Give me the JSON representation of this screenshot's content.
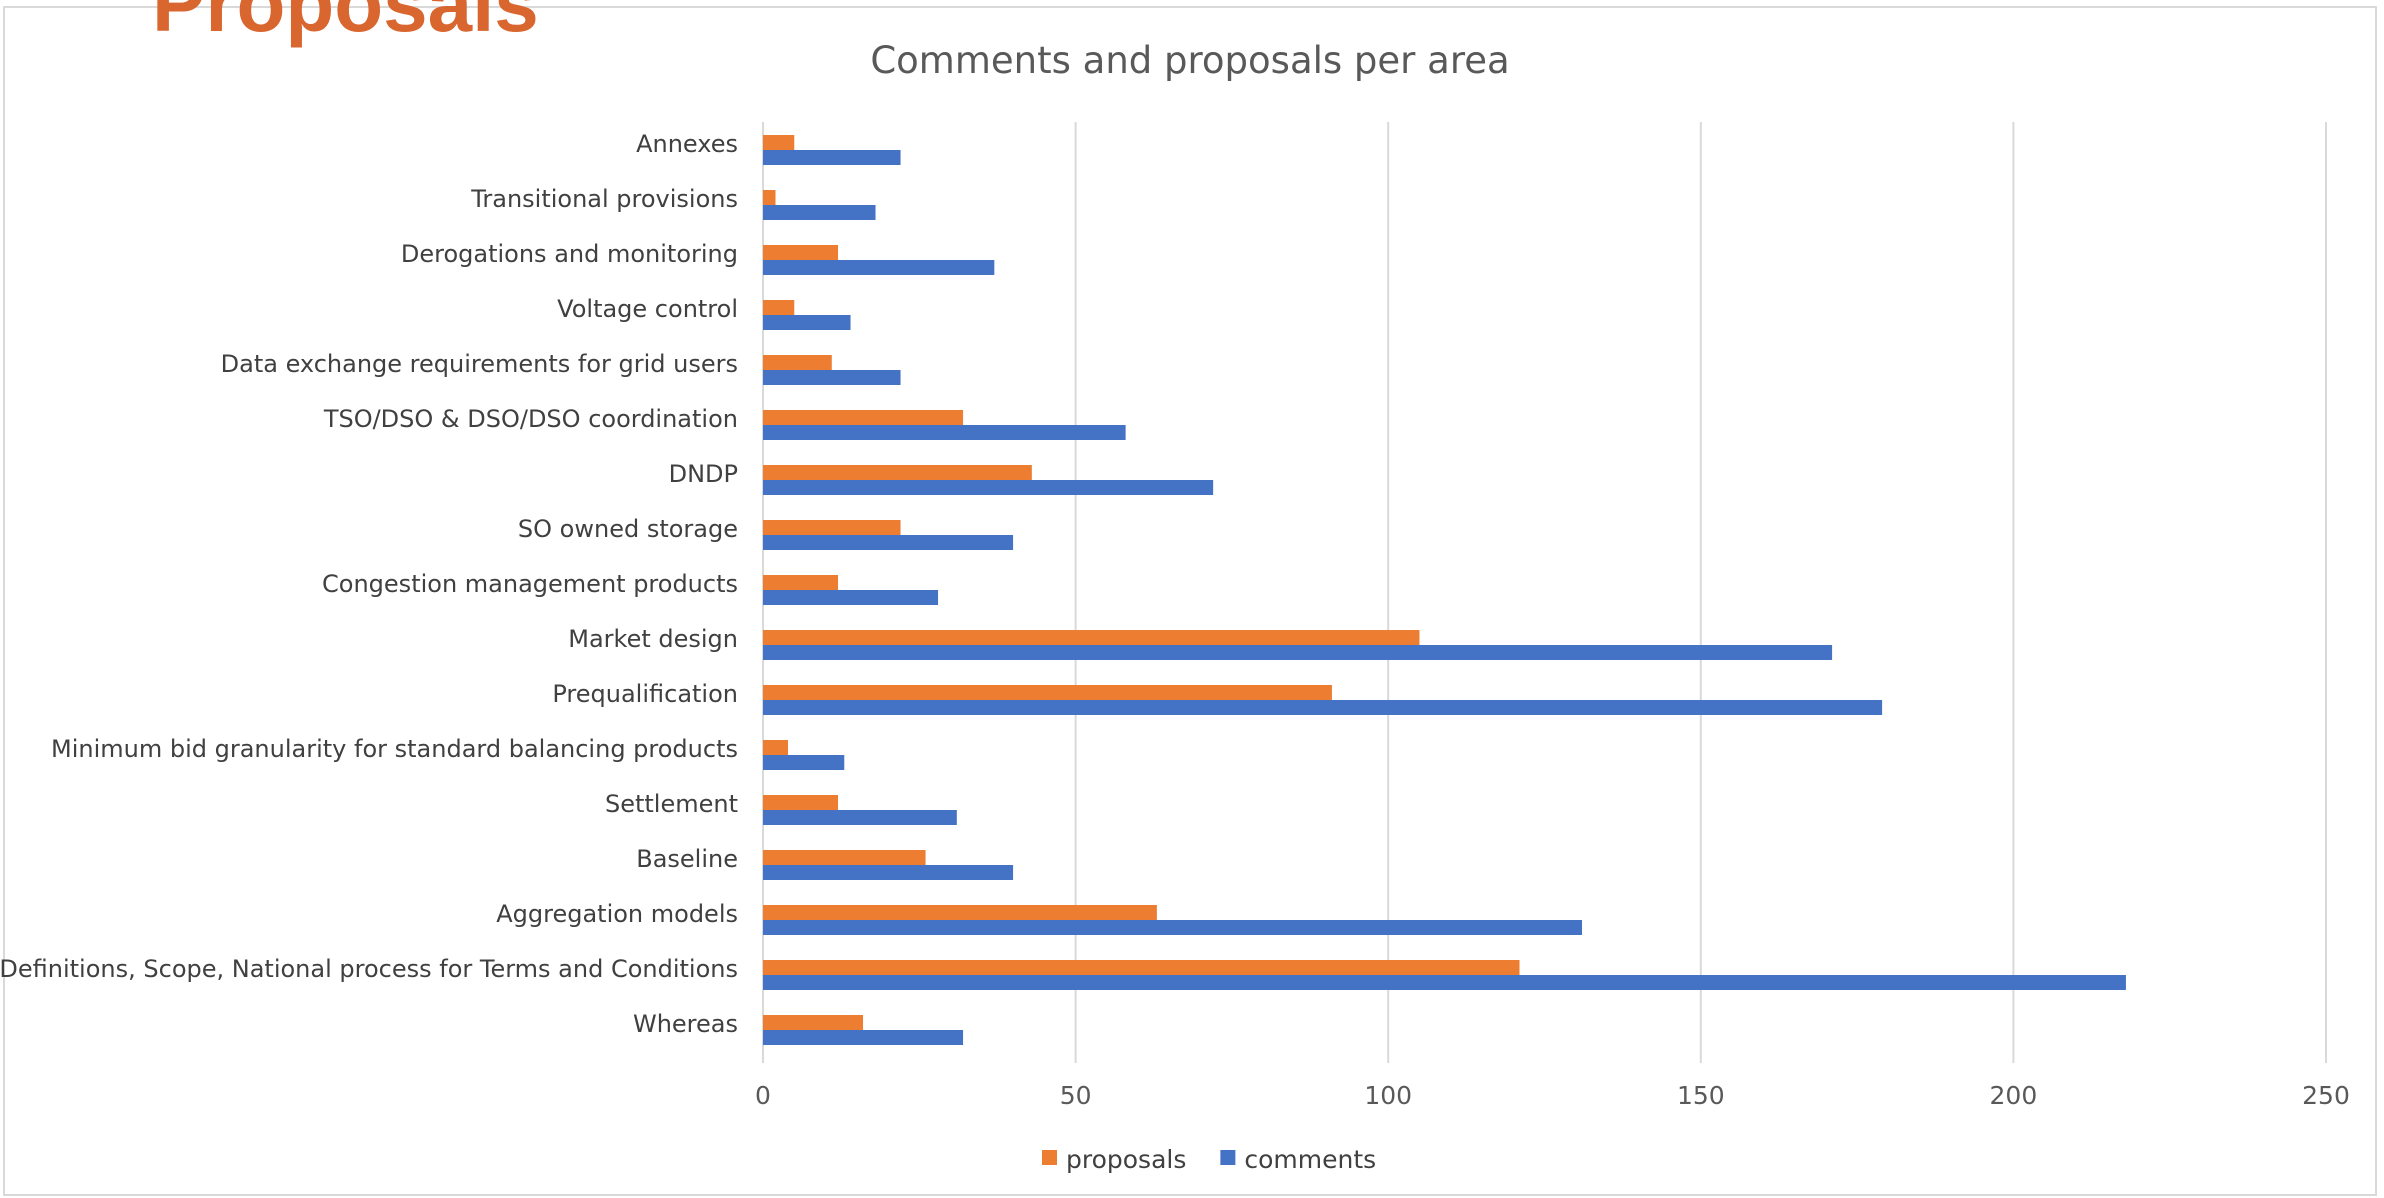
{
  "page": {
    "heading": "Proposals"
  },
  "chart_data": {
    "type": "bar",
    "orientation": "horizontal",
    "title": "Comments and proposals per area",
    "xlabel": "",
    "ylabel": "",
    "xlim": [
      0,
      250
    ],
    "x_ticks": [
      0,
      50,
      100,
      150,
      200,
      250
    ],
    "grid": "vertical",
    "legend_position": "bottom",
    "categories": [
      "Annexes",
      "Transitional provisions",
      "Derogations and monitoring",
      "Voltage control",
      "Data exchange requirements for grid users",
      "TSO/DSO & DSO/DSO coordination",
      "DNDP",
      "SO owned storage",
      "Congestion management products",
      "Market design",
      "Prequalification",
      "Minimum bid granularity for standard balancing products",
      "Settlement",
      "Baseline",
      "Aggregation models",
      "Definitions, Scope, National process for Terms and Conditions",
      "Whereas"
    ],
    "series": [
      {
        "name": "proposals",
        "color": "#ed7d31",
        "values": [
          5,
          2,
          12,
          5,
          11,
          32,
          43,
          22,
          12,
          105,
          91,
          4,
          12,
          26,
          63,
          121,
          16
        ]
      },
      {
        "name": "comments",
        "color": "#4472c4",
        "values": [
          22,
          18,
          37,
          14,
          22,
          58,
          72,
          40,
          28,
          171,
          179,
          13,
          31,
          40,
          131,
          218,
          32
        ]
      }
    ]
  }
}
